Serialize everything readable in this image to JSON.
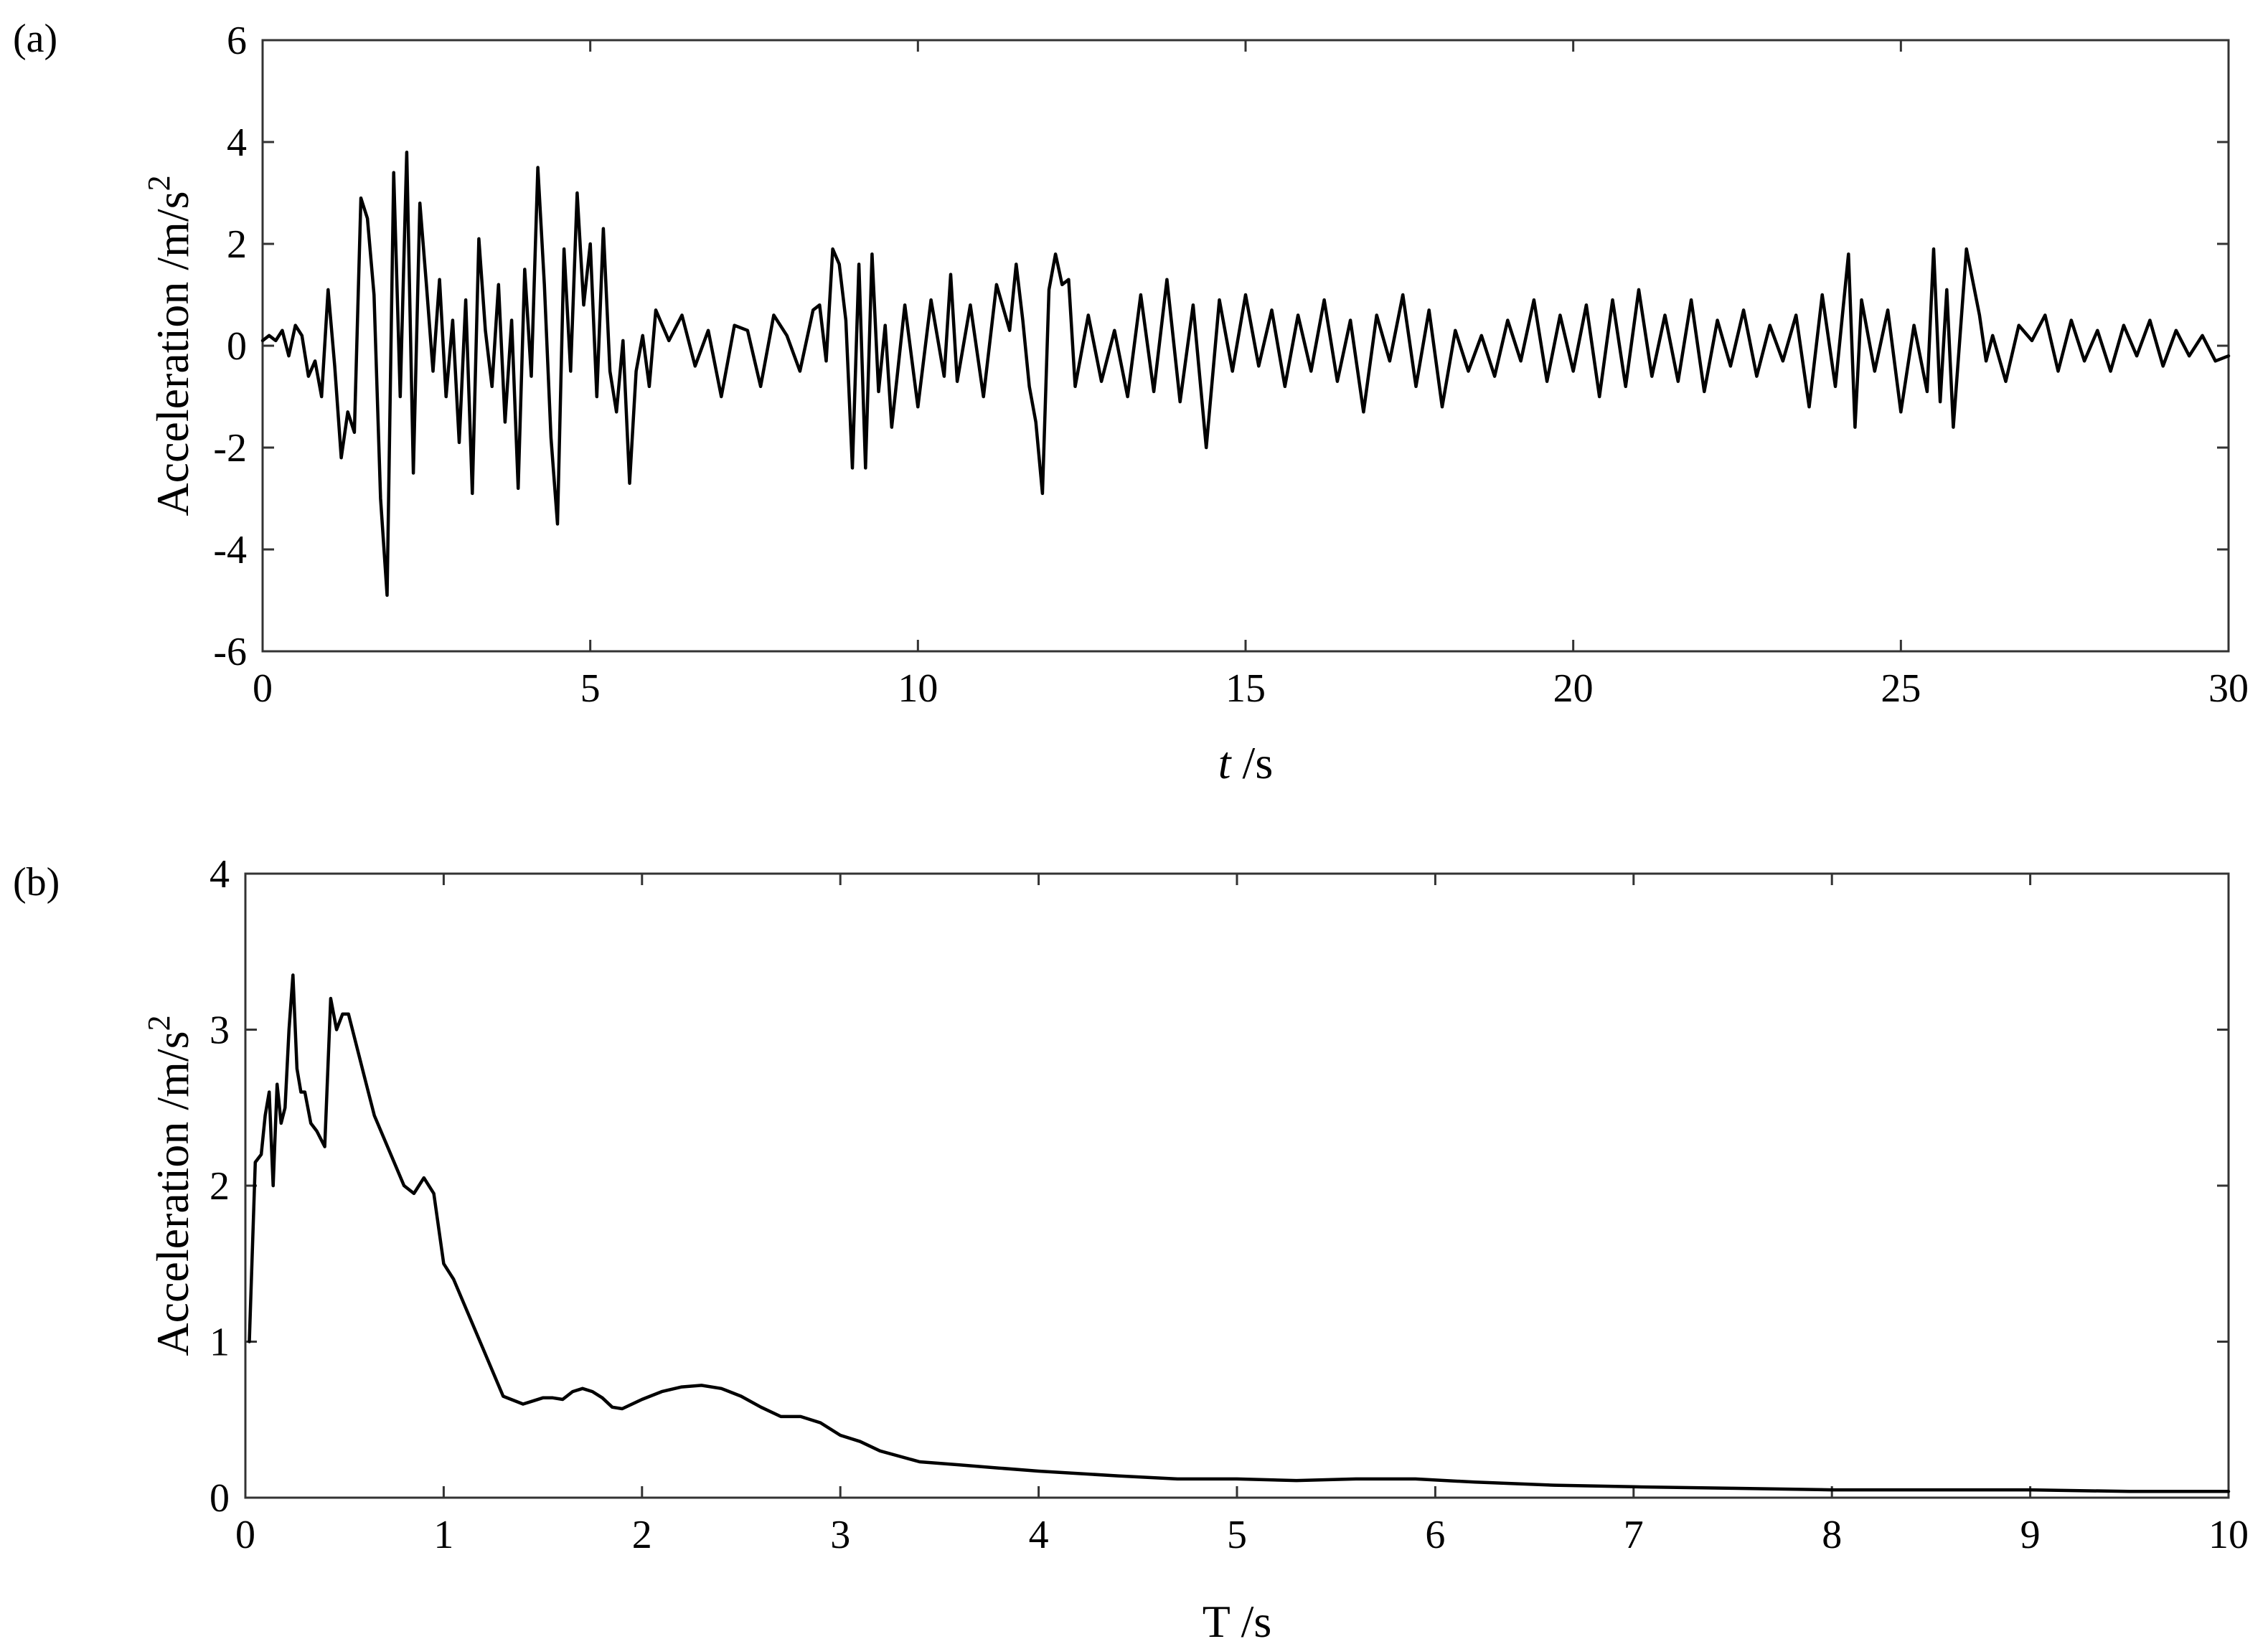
{
  "chart_data": [
    {
      "panel_label": "(a)",
      "type": "line",
      "xlabel_italic": "t",
      "xlabel_rest": " /s",
      "ylabel_main": "Acceleration /m/s",
      "ylabel_sup": "2",
      "xlim": [
        0,
        30
      ],
      "ylim": [
        -6,
        6
      ],
      "xticks": [
        0,
        5,
        10,
        15,
        20,
        25,
        30
      ],
      "yticks": [
        -6,
        -4,
        -2,
        0,
        2,
        4,
        6
      ],
      "xtick_labels": [
        "0",
        "5",
        "10",
        "15",
        "20",
        "25",
        "30"
      ],
      "ytick_labels": [
        "-6",
        "-4",
        "-2",
        "0",
        "2",
        "4",
        "6"
      ],
      "grid": false,
      "series": [
        {
          "x": [
            0.0,
            0.1,
            0.2,
            0.3,
            0.4,
            0.5,
            0.6,
            0.7,
            0.8,
            0.9,
            1.0,
            1.1,
            1.2,
            1.3,
            1.4,
            1.5,
            1.6,
            1.7,
            1.8,
            1.9,
            2.0,
            2.1,
            2.2,
            2.3,
            2.4,
            2.5,
            2.6,
            2.7,
            2.8,
            2.9,
            3.0,
            3.1,
            3.2,
            3.3,
            3.4,
            3.5,
            3.6,
            3.7,
            3.8,
            3.9,
            4.0,
            4.1,
            4.2,
            4.3,
            4.4,
            4.5,
            4.6,
            4.7,
            4.8,
            4.9,
            5.0,
            5.1,
            5.2,
            5.3,
            5.4,
            5.5,
            5.6,
            5.7,
            5.8,
            5.9,
            6.0,
            6.2,
            6.4,
            6.6,
            6.8,
            7.0,
            7.2,
            7.4,
            7.6,
            7.8,
            8.0,
            8.2,
            8.4,
            8.5,
            8.6,
            8.7,
            8.8,
            8.9,
            9.0,
            9.1,
            9.2,
            9.3,
            9.4,
            9.5,
            9.6,
            9.8,
            10.0,
            10.2,
            10.4,
            10.5,
            10.6,
            10.8,
            11.0,
            11.2,
            11.4,
            11.5,
            11.6,
            11.7,
            11.8,
            11.9,
            12.0,
            12.1,
            12.2,
            12.3,
            12.4,
            12.6,
            12.8,
            13.0,
            13.2,
            13.4,
            13.6,
            13.8,
            14.0,
            14.2,
            14.4,
            14.6,
            14.8,
            15.0,
            15.2,
            15.4,
            15.6,
            15.8,
            16.0,
            16.2,
            16.4,
            16.6,
            16.8,
            17.0,
            17.2,
            17.4,
            17.6,
            17.8,
            18.0,
            18.2,
            18.4,
            18.6,
            18.8,
            19.0,
            19.2,
            19.4,
            19.6,
            19.8,
            20.0,
            20.2,
            20.4,
            20.6,
            20.8,
            21.0,
            21.2,
            21.4,
            21.6,
            21.8,
            22.0,
            22.2,
            22.4,
            22.6,
            22.8,
            23.0,
            23.2,
            23.4,
            23.6,
            23.8,
            24.0,
            24.2,
            24.3,
            24.4,
            24.6,
            24.8,
            25.0,
            25.2,
            25.4,
            25.5,
            25.6,
            25.7,
            25.8,
            26.0,
            26.2,
            26.3,
            26.4,
            26.6,
            26.8,
            27.0,
            27.2,
            27.4,
            27.6,
            27.8,
            28.0,
            28.2,
            28.4,
            28.6,
            28.8,
            29.0,
            29.2,
            29.4,
            29.6,
            29.8,
            30.0
          ],
          "y": [
            0.1,
            0.2,
            0.1,
            0.3,
            -0.2,
            0.4,
            0.2,
            -0.6,
            -0.3,
            -1.0,
            1.1,
            -0.4,
            -2.2,
            -1.3,
            -1.7,
            2.9,
            2.5,
            1.0,
            -3.0,
            -4.9,
            3.4,
            -1.0,
            3.8,
            -2.5,
            2.8,
            1.2,
            -0.5,
            1.3,
            -1.0,
            0.5,
            -1.9,
            0.9,
            -2.9,
            2.1,
            0.3,
            -0.8,
            1.2,
            -1.5,
            0.5,
            -2.8,
            1.5,
            -0.6,
            3.5,
            1.2,
            -1.8,
            -3.5,
            1.9,
            -0.5,
            3.0,
            0.8,
            2.0,
            -1.0,
            2.3,
            -0.5,
            -1.3,
            0.1,
            -2.7,
            -0.5,
            0.2,
            -0.8,
            0.7,
            0.1,
            0.6,
            -0.4,
            0.3,
            -1.0,
            0.4,
            0.3,
            -0.8,
            0.6,
            0.2,
            -0.5,
            0.7,
            0.8,
            -0.3,
            1.9,
            1.6,
            0.5,
            -2.4,
            1.6,
            -2.4,
            1.8,
            -0.9,
            0.4,
            -1.6,
            0.8,
            -1.2,
            0.9,
            -0.6,
            1.4,
            -0.7,
            0.8,
            -1.0,
            1.2,
            0.3,
            1.6,
            0.5,
            -0.8,
            -1.5,
            -2.9,
            1.1,
            1.8,
            1.2,
            1.3,
            -0.8,
            0.6,
            -0.7,
            0.3,
            -1.0,
            1.0,
            -0.9,
            1.3,
            -1.1,
            0.8,
            -2.0,
            0.9,
            -0.5,
            1.0,
            -0.4,
            0.7,
            -0.8,
            0.6,
            -0.5,
            0.9,
            -0.7,
            0.5,
            -1.3,
            0.6,
            -0.3,
            1.0,
            -0.8,
            0.7,
            -1.2,
            0.3,
            -0.5,
            0.2,
            -0.6,
            0.5,
            -0.3,
            0.9,
            -0.7,
            0.6,
            -0.5,
            0.8,
            -1.0,
            0.9,
            -0.8,
            1.1,
            -0.6,
            0.6,
            -0.7,
            0.9,
            -0.9,
            0.5,
            -0.4,
            0.7,
            -0.6,
            0.4,
            -0.3,
            0.6,
            -1.2,
            1.0,
            -0.8,
            1.8,
            -1.6,
            0.9,
            -0.5,
            0.7,
            -1.3,
            0.4,
            -0.9,
            1.9,
            -1.1,
            1.1,
            -1.6,
            1.9,
            0.6,
            -0.3,
            0.2,
            -0.7,
            0.4,
            0.1,
            0.6,
            -0.5,
            0.5,
            -0.3,
            0.3,
            -0.5,
            0.4,
            -0.2,
            0.5,
            -0.4,
            0.3,
            -0.2,
            0.2,
            -0.3,
            -0.2
          ]
        }
      ]
    },
    {
      "panel_label": "(b)",
      "type": "line",
      "xlabel": "T /s",
      "ylabel_main": "Acceleration /m/s",
      "ylabel_sup": "2",
      "xlim": [
        0,
        10
      ],
      "ylim": [
        0,
        4
      ],
      "xticks": [
        0,
        1,
        2,
        3,
        4,
        5,
        6,
        7,
        8,
        9,
        10
      ],
      "yticks": [
        0,
        1,
        2,
        3,
        4
      ],
      "xtick_labels": [
        "0",
        "1",
        "2",
        "3",
        "4",
        "5",
        "6",
        "7",
        "8",
        "9",
        "10"
      ],
      "ytick_labels": [
        "0",
        "1",
        "2",
        "3",
        "4"
      ],
      "grid": false,
      "series": [
        {
          "x": [
            0.02,
            0.05,
            0.08,
            0.1,
            0.12,
            0.14,
            0.16,
            0.18,
            0.2,
            0.22,
            0.24,
            0.26,
            0.28,
            0.3,
            0.33,
            0.36,
            0.4,
            0.43,
            0.46,
            0.49,
            0.52,
            0.55,
            0.6,
            0.65,
            0.7,
            0.75,
            0.8,
            0.85,
            0.9,
            0.95,
            1.0,
            1.05,
            1.1,
            1.2,
            1.3,
            1.4,
            1.45,
            1.5,
            1.55,
            1.6,
            1.65,
            1.7,
            1.75,
            1.8,
            1.85,
            1.9,
            2.0,
            2.1,
            2.2,
            2.3,
            2.4,
            2.5,
            2.6,
            2.7,
            2.8,
            2.9,
            3.0,
            3.1,
            3.2,
            3.4,
            3.6,
            3.8,
            4.0,
            4.4,
            4.7,
            5.0,
            5.3,
            5.6,
            5.9,
            6.2,
            6.6,
            7.0,
            7.5,
            8.0,
            8.5,
            9.0,
            9.5,
            10.0
          ],
          "y": [
            1.0,
            2.15,
            2.2,
            2.45,
            2.6,
            2.0,
            2.65,
            2.4,
            2.5,
            3.0,
            3.35,
            2.75,
            2.6,
            2.6,
            2.4,
            2.35,
            2.25,
            3.2,
            3.0,
            3.1,
            3.1,
            2.95,
            2.7,
            2.45,
            2.3,
            2.15,
            2.0,
            1.95,
            2.05,
            1.95,
            1.5,
            1.4,
            1.25,
            0.95,
            0.65,
            0.6,
            0.62,
            0.64,
            0.64,
            0.63,
            0.68,
            0.7,
            0.68,
            0.64,
            0.58,
            0.57,
            0.63,
            0.68,
            0.71,
            0.72,
            0.7,
            0.65,
            0.58,
            0.52,
            0.52,
            0.48,
            0.4,
            0.36,
            0.3,
            0.23,
            0.21,
            0.19,
            0.17,
            0.14,
            0.12,
            0.12,
            0.11,
            0.12,
            0.12,
            0.1,
            0.08,
            0.07,
            0.06,
            0.05,
            0.05,
            0.05,
            0.04,
            0.04
          ]
        }
      ]
    }
  ]
}
